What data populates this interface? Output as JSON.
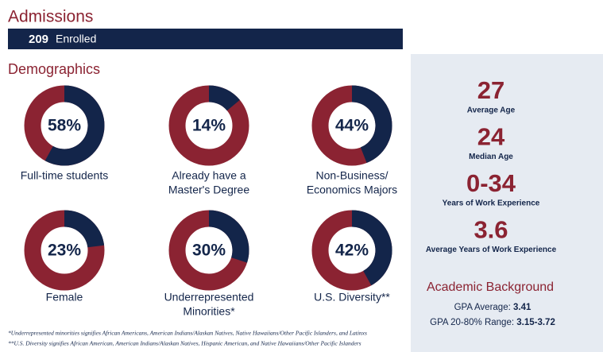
{
  "header": {
    "title": "Admissions",
    "enrolled_number": "209",
    "enrolled_label": "Enrolled"
  },
  "demographics": {
    "title": "Demographics",
    "items": [
      {
        "value": 58,
        "label": "58%",
        "caption": [
          "Full-time students"
        ]
      },
      {
        "value": 14,
        "label": "14%",
        "caption": [
          "Already have a",
          "Master's Degree"
        ]
      },
      {
        "value": 44,
        "label": "44%",
        "caption": [
          "Non-Business/",
          "Economics Majors"
        ]
      },
      {
        "value": 23,
        "label": "23%",
        "caption": [
          "Female"
        ]
      },
      {
        "value": 30,
        "label": "30%",
        "caption": [
          "Underrepresented",
          "Minorities*"
        ]
      },
      {
        "value": 42,
        "label": "42%",
        "caption": [
          "U.S. Diversity**"
        ]
      }
    ]
  },
  "stats": [
    {
      "value": "27",
      "label": "Average Age"
    },
    {
      "value": "24",
      "label": "Median Age"
    },
    {
      "value": "0-34",
      "label": "Years of Work Experience"
    },
    {
      "value": "3.6",
      "label": "Average Years of Work Experience"
    }
  ],
  "academic": {
    "title": "Academic Background",
    "lines": [
      {
        "label": "GPA Average:",
        "value": "3.41"
      },
      {
        "label": "GPA 20-80% Range:",
        "value": "3.15-3.72"
      }
    ]
  },
  "footnotes": [
    "*Underrepresented minorities signifies African Americans, American Indians/Alaskan Natives, Native Hawaiians/Other Pacific Islanders, and Latinxs",
    "**U.S. Diversity signifies African American,  American Indians/Alaskan Natives, Hispanic American, and Native Hawaiians/Other Pacific Islanders"
  ]
}
